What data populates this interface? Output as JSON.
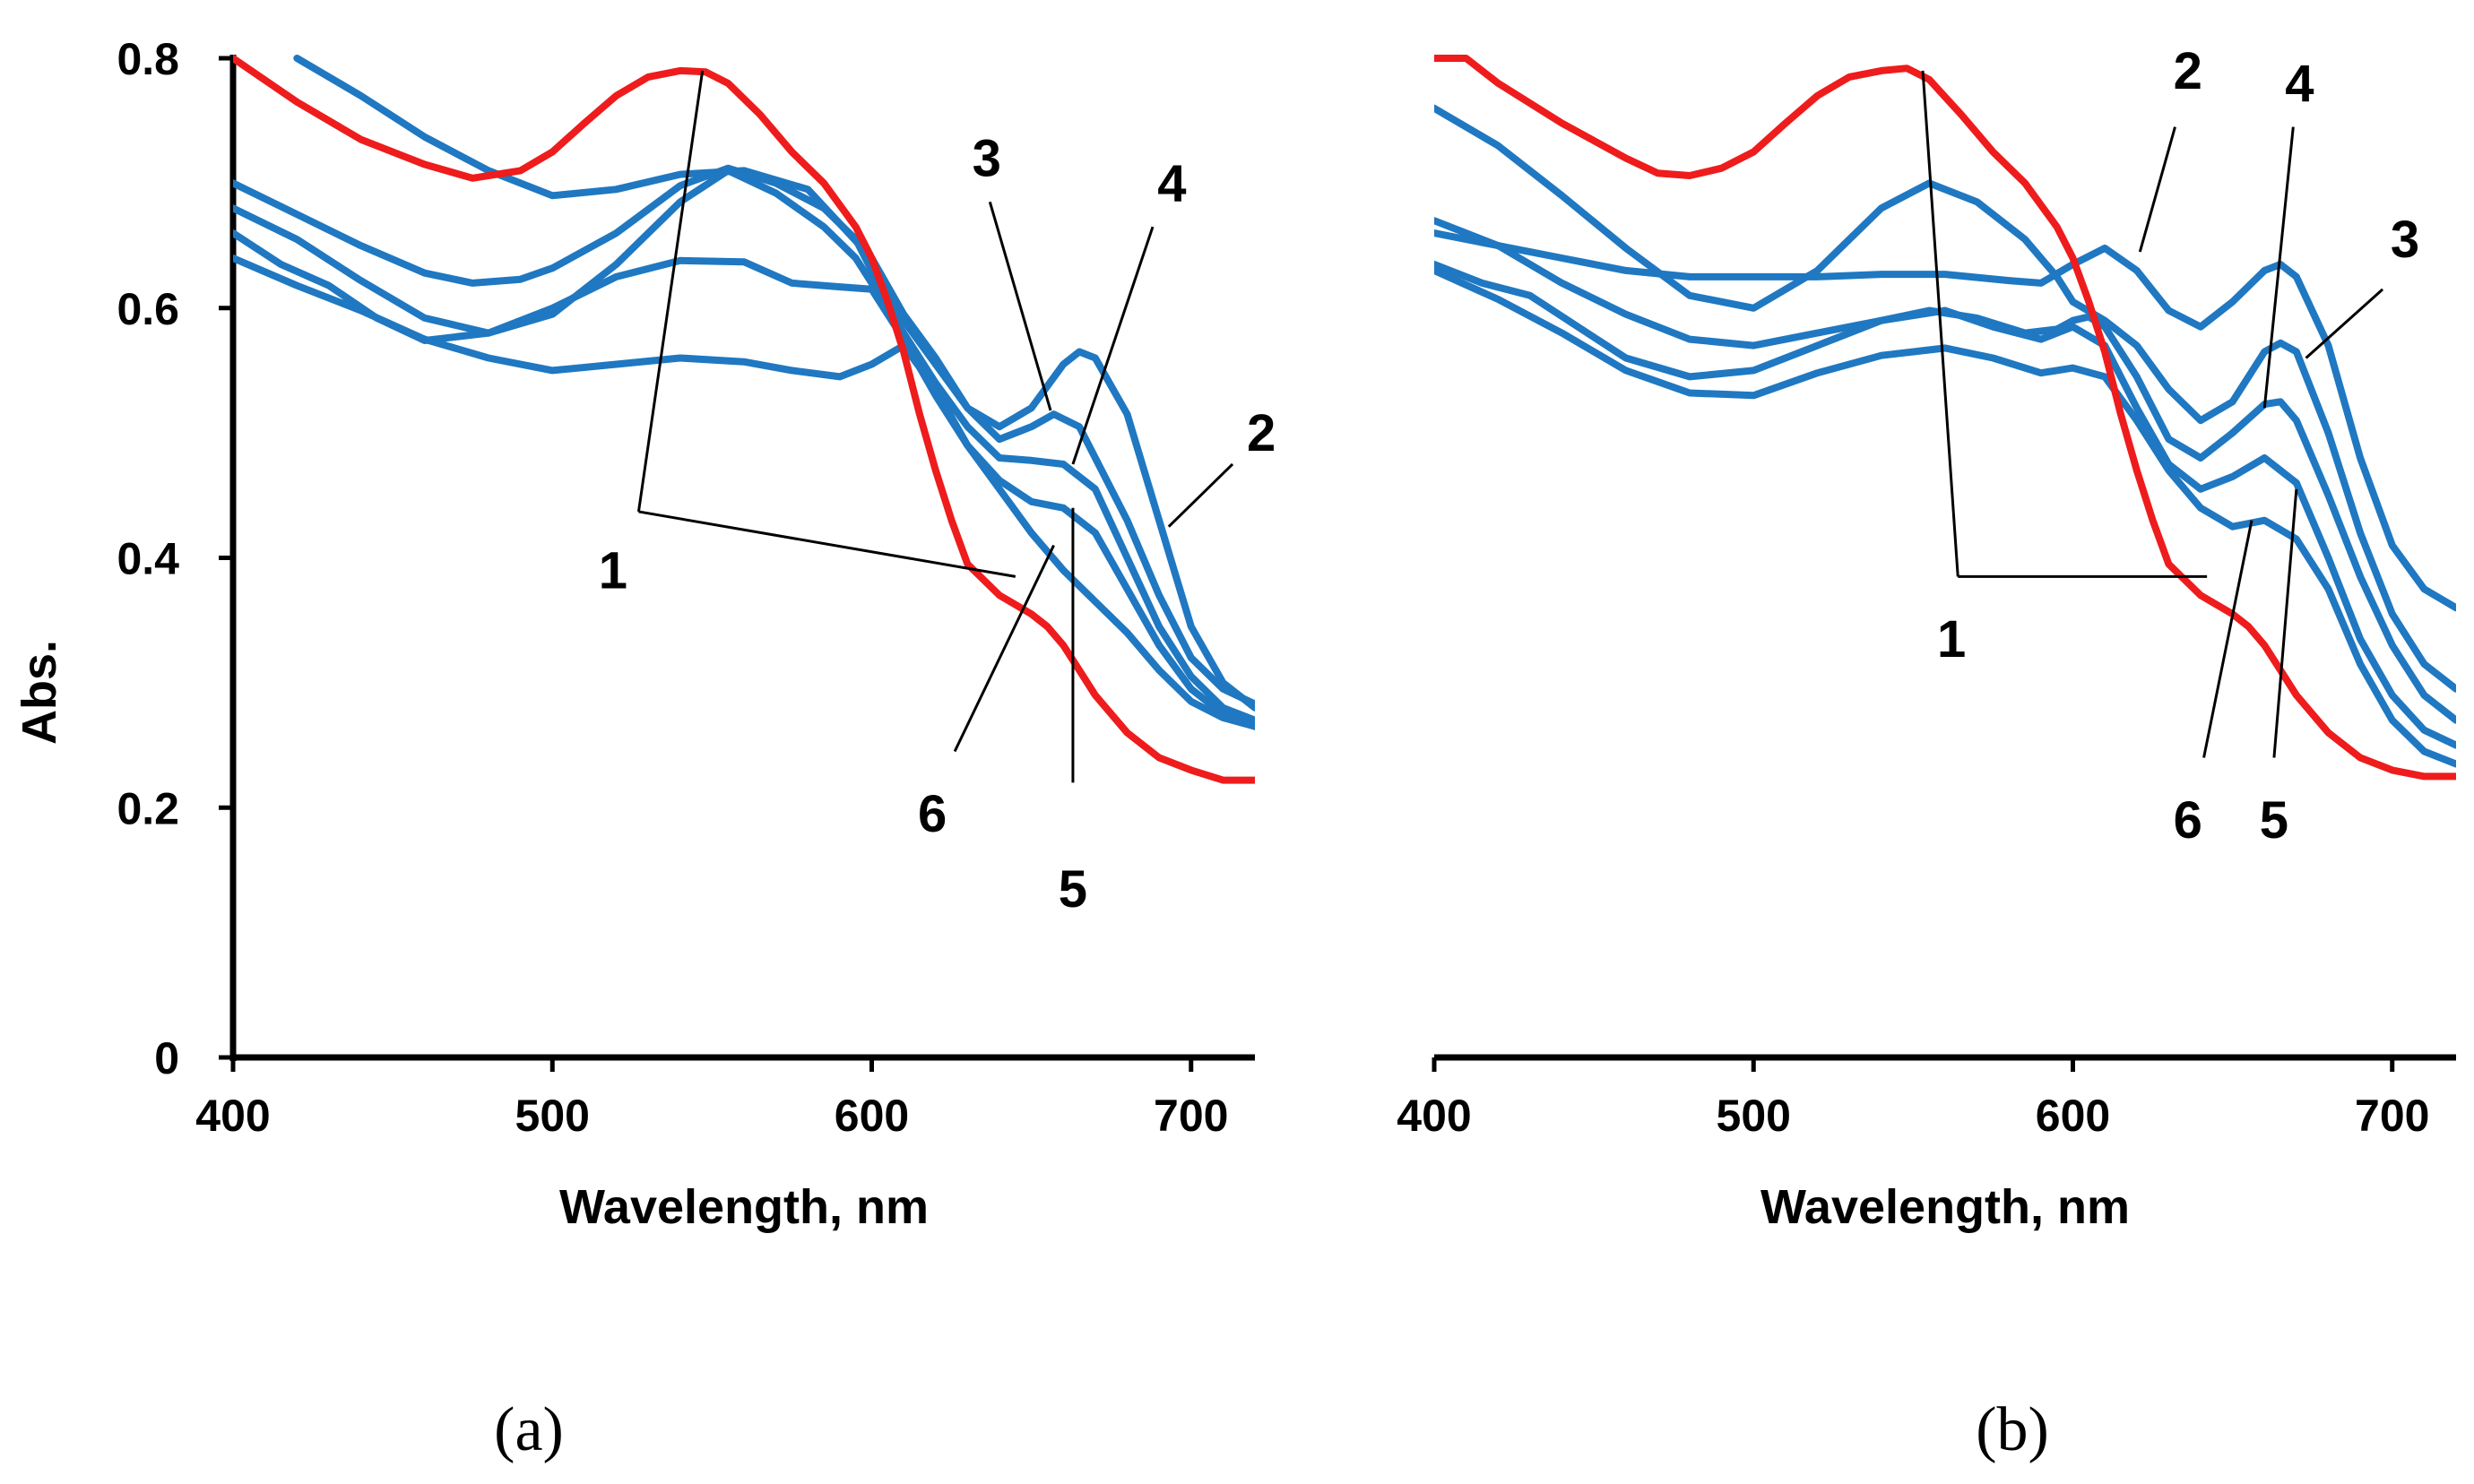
{
  "colors": {
    "reference": "#ee1c1c",
    "series": "#1f78c1",
    "axis": "#000000"
  },
  "chart_data": [
    {
      "type": "line",
      "panel_label": "(a)",
      "title": "",
      "xlabel": "Wavelength, nm",
      "ylabel": "Abs.",
      "xlim": [
        400,
        720
      ],
      "ylim": [
        0,
        0.8
      ],
      "xticks": [
        400,
        500,
        600,
        700
      ],
      "yticks": [
        0,
        0.2,
        0.4,
        0.6,
        0.8
      ],
      "ytick_labels": [
        "0",
        "0.2",
        "0.4",
        "0.6",
        "0.8"
      ],
      "grid": false,
      "series": [
        {
          "name": "1",
          "color": "#ee1c1c",
          "x": [
            400,
            420,
            440,
            460,
            475,
            490,
            500,
            510,
            520,
            530,
            540,
            548,
            555,
            565,
            575,
            585,
            595,
            600,
            605,
            610,
            615,
            620,
            625,
            630,
            640,
            650,
            655,
            660,
            665,
            670,
            680,
            690,
            700,
            710,
            720
          ],
          "y": [
            0.8,
            0.765,
            0.735,
            0.715,
            0.704,
            0.71,
            0.725,
            0.748,
            0.77,
            0.785,
            0.79,
            0.789,
            0.78,
            0.755,
            0.725,
            0.7,
            0.665,
            0.64,
            0.605,
            0.565,
            0.515,
            0.47,
            0.43,
            0.395,
            0.37,
            0.355,
            0.345,
            0.33,
            0.31,
            0.29,
            0.26,
            0.24,
            0.23,
            0.222,
            0.222
          ]
        },
        {
          "name": "2",
          "color": "#1f78c1",
          "x": [
            420,
            440,
            460,
            480,
            500,
            520,
            540,
            560,
            580,
            600,
            610,
            620,
            630,
            640,
            650,
            660,
            665,
            670,
            680,
            690,
            700,
            710,
            720
          ],
          "y": [
            0.8,
            0.77,
            0.737,
            0.71,
            0.69,
            0.695,
            0.707,
            0.71,
            0.695,
            0.64,
            0.595,
            0.56,
            0.52,
            0.505,
            0.52,
            0.555,
            0.565,
            0.56,
            0.515,
            0.43,
            0.345,
            0.3,
            0.28
          ]
        },
        {
          "name": "3",
          "color": "#1f78c1",
          "x": [
            400,
            420,
            440,
            460,
            475,
            490,
            500,
            520,
            540,
            555,
            570,
            585,
            595,
            600,
            610,
            620,
            630,
            640,
            650,
            657,
            665,
            680,
            690,
            700,
            710,
            720
          ],
          "y": [
            0.7,
            0.675,
            0.65,
            0.628,
            0.62,
            0.623,
            0.632,
            0.66,
            0.698,
            0.712,
            0.7,
            0.68,
            0.655,
            0.63,
            0.59,
            0.555,
            0.52,
            0.495,
            0.505,
            0.515,
            0.505,
            0.43,
            0.37,
            0.32,
            0.295,
            0.283
          ]
        },
        {
          "name": "4",
          "color": "#1f78c1",
          "x": [
            400,
            420,
            440,
            460,
            480,
            500,
            520,
            540,
            555,
            570,
            585,
            595,
            600,
            610,
            620,
            630,
            640,
            650,
            660,
            670,
            680,
            690,
            700,
            710,
            720
          ],
          "y": [
            0.68,
            0.655,
            0.622,
            0.592,
            0.58,
            0.595,
            0.635,
            0.685,
            0.71,
            0.692,
            0.665,
            0.64,
            0.62,
            0.58,
            0.54,
            0.505,
            0.48,
            0.478,
            0.475,
            0.455,
            0.4,
            0.345,
            0.305,
            0.28,
            0.27
          ]
        },
        {
          "name": "5",
          "color": "#1f78c1",
          "x": [
            400,
            415,
            430,
            445,
            460,
            480,
            500,
            520,
            540,
            560,
            575,
            590,
            600,
            610,
            620,
            630,
            640,
            650,
            660,
            670,
            680,
            690,
            700,
            710,
            720
          ],
          "y": [
            0.66,
            0.635,
            0.618,
            0.592,
            0.574,
            0.58,
            0.6,
            0.625,
            0.638,
            0.637,
            0.62,
            0.617,
            0.615,
            0.575,
            0.53,
            0.49,
            0.462,
            0.445,
            0.44,
            0.42,
            0.375,
            0.33,
            0.295,
            0.275,
            0.265
          ]
        },
        {
          "name": "6",
          "color": "#1f78c1",
          "x": [
            400,
            420,
            440,
            460,
            480,
            500,
            520,
            540,
            560,
            575,
            590,
            600,
            610,
            620,
            630,
            640,
            650,
            660,
            670,
            680,
            690,
            700,
            710,
            720
          ],
          "y": [
            0.64,
            0.618,
            0.598,
            0.575,
            0.56,
            0.55,
            0.555,
            0.56,
            0.557,
            0.55,
            0.545,
            0.555,
            0.57,
            0.535,
            0.49,
            0.455,
            0.42,
            0.39,
            0.365,
            0.34,
            0.31,
            0.285,
            0.272,
            0.265
          ]
        }
      ],
      "annotations": [
        {
          "label": "1",
          "text_at": [
            519,
            0.39
          ],
          "pointers": [
            [
              547,
              0.79
            ],
            [
              645,
              0.385
            ]
          ],
          "elbow": [
            527,
            0.437
          ]
        },
        {
          "label": "2",
          "text_at": [
            722,
            0.5
          ],
          "pointers": [
            [
              693,
              0.425
            ]
          ],
          "elbow": [
            713,
            0.475
          ]
        },
        {
          "label": "3",
          "text_at": [
            636,
            0.72
          ],
          "pointers": [
            [
              656,
              0.518
            ]
          ],
          "elbow": [
            637,
            0.685
          ]
        },
        {
          "label": "4",
          "text_at": [
            694,
            0.7
          ],
          "pointers": [
            [
              663,
              0.475
            ]
          ],
          "elbow": [
            688,
            0.665
          ]
        },
        {
          "label": "5",
          "text_at": [
            663,
            0.135
          ],
          "pointers": [
            [
              663,
              0.44
            ]
          ],
          "elbow": [
            663,
            0.22
          ]
        },
        {
          "label": "6",
          "text_at": [
            619,
            0.195
          ],
          "pointers": [
            [
              657,
              0.41
            ]
          ],
          "elbow": [
            626,
            0.245
          ]
        }
      ]
    },
    {
      "type": "line",
      "panel_label": "(b)",
      "title": "",
      "xlabel": "Wavelength, nm",
      "ylabel": "",
      "xlim": [
        400,
        720
      ],
      "ylim": [
        0,
        0.8
      ],
      "xticks": [
        400,
        500,
        600,
        700
      ],
      "yticks": [],
      "ytick_labels": [],
      "grid": false,
      "series": [
        {
          "name": "1",
          "color": "#ee1c1c",
          "x": [
            400,
            410,
            420,
            440,
            460,
            470,
            480,
            490,
            500,
            510,
            520,
            530,
            540,
            548,
            555,
            565,
            575,
            585,
            595,
            600,
            605,
            610,
            615,
            620,
            625,
            630,
            640,
            650,
            655,
            660,
            665,
            670,
            680,
            690,
            700,
            710,
            720
          ],
          "y": [
            0.8,
            0.8,
            0.78,
            0.748,
            0.72,
            0.708,
            0.706,
            0.712,
            0.725,
            0.748,
            0.77,
            0.785,
            0.79,
            0.792,
            0.783,
            0.755,
            0.725,
            0.7,
            0.665,
            0.64,
            0.605,
            0.565,
            0.515,
            0.47,
            0.43,
            0.395,
            0.37,
            0.355,
            0.345,
            0.33,
            0.31,
            0.29,
            0.26,
            0.24,
            0.23,
            0.225,
            0.225
          ]
        },
        {
          "name": "2",
          "color": "#1f78c1",
          "x": [
            400,
            420,
            440,
            460,
            480,
            500,
            520,
            540,
            560,
            580,
            590,
            600,
            610,
            620,
            630,
            640,
            650,
            660,
            665,
            670,
            680,
            690,
            700,
            710,
            720
          ],
          "y": [
            0.66,
            0.65,
            0.64,
            0.63,
            0.625,
            0.625,
            0.625,
            0.627,
            0.627,
            0.622,
            0.62,
            0.635,
            0.648,
            0.63,
            0.598,
            0.585,
            0.605,
            0.63,
            0.635,
            0.625,
            0.57,
            0.48,
            0.41,
            0.375,
            0.36
          ]
        },
        {
          "name": "3",
          "color": "#1f78c1",
          "x": [
            400,
            420,
            440,
            460,
            480,
            500,
            520,
            540,
            555,
            570,
            585,
            595,
            600,
            610,
            620,
            630,
            640,
            650,
            660,
            665,
            670,
            680,
            690,
            700,
            710,
            720
          ],
          "y": [
            0.76,
            0.73,
            0.69,
            0.648,
            0.61,
            0.6,
            0.63,
            0.68,
            0.7,
            0.685,
            0.655,
            0.625,
            0.605,
            0.59,
            0.57,
            0.535,
            0.51,
            0.525,
            0.565,
            0.572,
            0.565,
            0.5,
            0.42,
            0.355,
            0.315,
            0.295
          ]
        },
        {
          "name": "4",
          "color": "#1f78c1",
          "x": [
            400,
            420,
            440,
            460,
            480,
            500,
            520,
            540,
            555,
            570,
            585,
            595,
            600,
            605,
            610,
            620,
            630,
            640,
            650,
            660,
            665,
            670,
            680,
            690,
            700,
            710,
            720
          ],
          "y": [
            0.67,
            0.65,
            0.62,
            0.595,
            0.575,
            0.57,
            0.58,
            0.59,
            0.598,
            0.592,
            0.58,
            0.583,
            0.59,
            0.593,
            0.585,
            0.545,
            0.495,
            0.48,
            0.5,
            0.523,
            0.525,
            0.51,
            0.45,
            0.385,
            0.33,
            0.29,
            0.27
          ]
        },
        {
          "name": "5",
          "color": "#1f78c1",
          "x": [
            400,
            415,
            430,
            445,
            460,
            480,
            500,
            520,
            540,
            560,
            575,
            590,
            600,
            610,
            620,
            630,
            640,
            650,
            660,
            670,
            680,
            690,
            700,
            710,
            720
          ],
          "y": [
            0.635,
            0.62,
            0.61,
            0.585,
            0.56,
            0.545,
            0.55,
            0.57,
            0.59,
            0.598,
            0.585,
            0.575,
            0.585,
            0.57,
            0.52,
            0.475,
            0.455,
            0.465,
            0.48,
            0.46,
            0.4,
            0.335,
            0.29,
            0.262,
            0.25
          ]
        },
        {
          "name": "6",
          "color": "#1f78c1",
          "x": [
            400,
            420,
            440,
            460,
            480,
            500,
            520,
            540,
            560,
            575,
            590,
            600,
            610,
            620,
            630,
            640,
            650,
            660,
            670,
            680,
            690,
            700,
            710,
            720
          ],
          "y": [
            0.63,
            0.607,
            0.58,
            0.55,
            0.532,
            0.53,
            0.548,
            0.562,
            0.568,
            0.56,
            0.548,
            0.552,
            0.545,
            0.51,
            0.47,
            0.44,
            0.425,
            0.43,
            0.415,
            0.375,
            0.315,
            0.27,
            0.245,
            0.235
          ]
        }
      ],
      "annotations": [
        {
          "label": "1",
          "text_at": [
            562,
            0.335
          ],
          "pointers": [
            [
              553,
              0.79
            ],
            [
              642,
              0.385
            ]
          ],
          "elbow": [
            564,
            0.385
          ]
        },
        {
          "label": "2",
          "text_at": [
            636,
            0.79
          ],
          "pointers": [
            [
              621,
              0.645
            ]
          ],
          "elbow": [
            632,
            0.745
          ]
        },
        {
          "label": "3",
          "text_at": [
            704,
            0.655
          ],
          "pointers": [
            [
              673,
              0.56
            ]
          ],
          "elbow": [
            697,
            0.615
          ]
        },
        {
          "label": "4",
          "text_at": [
            671,
            0.78
          ],
          "pointers": [
            [
              660,
              0.52
            ]
          ],
          "elbow": [
            669,
            0.745
          ]
        },
        {
          "label": "5",
          "text_at": [
            663,
            0.19
          ],
          "pointers": [
            [
              670,
              0.455
            ]
          ],
          "elbow": [
            663,
            0.24
          ]
        },
        {
          "label": "6",
          "text_at": [
            636,
            0.19
          ],
          "pointers": [
            [
              656,
              0.43
            ]
          ],
          "elbow": [
            641,
            0.24
          ]
        }
      ]
    }
  ]
}
